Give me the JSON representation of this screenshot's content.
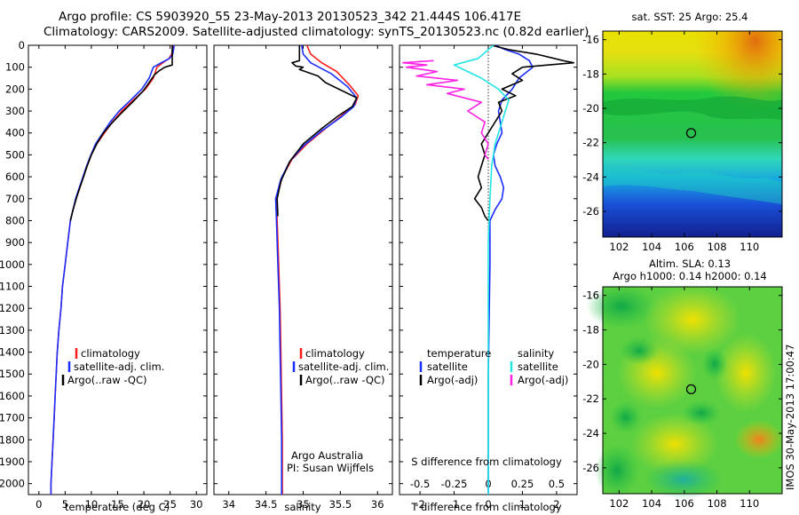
{
  "title_line1": "Argo profile: CS 5903920_55 23-May-2013 20130523_342 21.444S 106.417E",
  "title_line2": "Climatology: CARS2009. Satellite-adjusted climatology: synTS_20130523.nc (0.82d earlier)",
  "footer_vertical": "IMOS 30-May-2013 17:00:47",
  "colors": {
    "climatology": "#ff1a1a",
    "satellite": "#1a2eff",
    "argo": "#000000",
    "sal_satellite": "#22e5e5",
    "sal_argo": "#ff22e5"
  },
  "chart_data": [
    {
      "id": "temperature",
      "type": "line",
      "xlabel": "temperature (deg C)",
      "xlim": [
        -2,
        32
      ],
      "ylim": [
        2050,
        0
      ],
      "xticks": [
        0,
        5,
        10,
        15,
        20,
        25,
        30
      ],
      "yticks": [
        0,
        100,
        200,
        300,
        400,
        500,
        600,
        700,
        800,
        900,
        1000,
        1100,
        1200,
        1300,
        1400,
        1500,
        1600,
        1700,
        1800,
        1900,
        2000
      ],
      "legend": [
        "climatology",
        "satellite-adj. clim.",
        "Argo(..raw -QC)"
      ],
      "series": [
        {
          "name": "climatology",
          "color": "climatology",
          "points": [
            [
              25.6,
              0
            ],
            [
              25.3,
              40
            ],
            [
              24.8,
              60
            ],
            [
              23.6,
              80
            ],
            [
              22.5,
              100
            ],
            [
              21.8,
              150
            ],
            [
              20.3,
              200
            ],
            [
              18.0,
              250
            ],
            [
              15.8,
              300
            ],
            [
              14.0,
              350
            ],
            [
              12.5,
              400
            ],
            [
              11.0,
              450
            ],
            [
              10.0,
              500
            ],
            [
              9.2,
              550
            ],
            [
              8.5,
              600
            ],
            [
              7.8,
              650
            ],
            [
              7.1,
              700
            ],
            [
              6.5,
              750
            ],
            [
              6.0,
              800
            ],
            [
              5.5,
              900
            ],
            [
              5.0,
              1000
            ],
            [
              4.5,
              1100
            ],
            [
              4.2,
              1200
            ],
            [
              3.8,
              1300
            ],
            [
              3.5,
              1400
            ],
            [
              3.3,
              1500
            ],
            [
              3.1,
              1600
            ],
            [
              2.9,
              1700
            ],
            [
              2.7,
              1800
            ],
            [
              2.5,
              1900
            ],
            [
              2.3,
              2000
            ],
            [
              2.3,
              2050
            ]
          ]
        },
        {
          "name": "satellite-adj. clim.",
          "color": "satellite",
          "points": [
            [
              25.8,
              0
            ],
            [
              25.5,
              40
            ],
            [
              24.9,
              60
            ],
            [
              23.3,
              80
            ],
            [
              21.8,
              100
            ],
            [
              21.0,
              150
            ],
            [
              19.6,
              200
            ],
            [
              17.5,
              250
            ],
            [
              15.3,
              300
            ],
            [
              13.6,
              350
            ],
            [
              12.2,
              400
            ],
            [
              10.8,
              450
            ],
            [
              9.9,
              500
            ],
            [
              9.1,
              550
            ],
            [
              8.4,
              600
            ],
            [
              7.7,
              650
            ],
            [
              7.0,
              700
            ],
            [
              6.5,
              750
            ],
            [
              6.0,
              800
            ],
            [
              5.5,
              900
            ],
            [
              5.0,
              1000
            ],
            [
              4.5,
              1100
            ],
            [
              4.2,
              1200
            ],
            [
              3.8,
              1300
            ],
            [
              3.5,
              1400
            ],
            [
              3.3,
              1500
            ],
            [
              3.1,
              1600
            ],
            [
              2.9,
              1700
            ],
            [
              2.7,
              1800
            ],
            [
              2.5,
              1900
            ],
            [
              2.3,
              2000
            ],
            [
              2.3,
              2050
            ]
          ]
        },
        {
          "name": "Argo(..raw -QC)",
          "color": "argo",
          "points": [
            [
              25.4,
              0
            ],
            [
              25.4,
              90
            ],
            [
              24.0,
              100
            ],
            [
              23.0,
              115
            ],
            [
              22.0,
              135
            ],
            [
              21.0,
              170
            ],
            [
              19.8,
              210
            ],
            [
              17.8,
              260
            ],
            [
              15.7,
              310
            ],
            [
              13.9,
              355
            ],
            [
              12.3,
              400
            ],
            [
              11.0,
              450
            ],
            [
              10.0,
              500
            ],
            [
              9.2,
              550
            ],
            [
              8.5,
              600
            ],
            [
              7.8,
              650
            ],
            [
              7.1,
              700
            ],
            [
              6.5,
              750
            ],
            [
              6.0,
              800
            ]
          ]
        }
      ]
    },
    {
      "id": "salinity",
      "type": "line",
      "xlabel": "salinity",
      "xlim": [
        33.8,
        36.2
      ],
      "ylim": [
        2050,
        0
      ],
      "xticks": [
        34,
        34.5,
        35,
        35.5,
        36
      ],
      "legend": [
        "climatology",
        "satellite-adj. clim.",
        "Argo(..raw -QC)"
      ],
      "annotation_line1": "Argo Australia",
      "annotation_line2": "PI: Susan Wijffels",
      "series": [
        {
          "name": "climatology",
          "color": "climatology",
          "points": [
            [
              35.05,
              0
            ],
            [
              35.1,
              40
            ],
            [
              35.25,
              80
            ],
            [
              35.45,
              120
            ],
            [
              35.62,
              180
            ],
            [
              35.74,
              230
            ],
            [
              35.7,
              270
            ],
            [
              35.52,
              320
            ],
            [
              35.3,
              380
            ],
            [
              35.05,
              450
            ],
            [
              34.85,
              520
            ],
            [
              34.72,
              600
            ],
            [
              34.64,
              700
            ],
            [
              34.65,
              800
            ],
            [
              34.67,
              1000
            ],
            [
              34.69,
              1200
            ],
            [
              34.7,
              1400
            ],
            [
              34.71,
              1600
            ],
            [
              34.72,
              1800
            ],
            [
              34.72,
              2000
            ],
            [
              34.72,
              2050
            ]
          ]
        },
        {
          "name": "satellite-adj. clim.",
          "color": "satellite",
          "points": [
            [
              34.98,
              0
            ],
            [
              35.0,
              40
            ],
            [
              35.1,
              80
            ],
            [
              35.38,
              130
            ],
            [
              35.6,
              190
            ],
            [
              35.72,
              240
            ],
            [
              35.68,
              280
            ],
            [
              35.5,
              330
            ],
            [
              35.25,
              390
            ],
            [
              35.0,
              460
            ],
            [
              34.82,
              530
            ],
            [
              34.7,
              610
            ],
            [
              34.63,
              700
            ],
            [
              34.64,
              800
            ],
            [
              34.66,
              1000
            ],
            [
              34.68,
              1200
            ],
            [
              34.69,
              1400
            ],
            [
              34.7,
              1600
            ],
            [
              34.71,
              1800
            ],
            [
              34.71,
              2000
            ],
            [
              34.71,
              2050
            ]
          ]
        },
        {
          "name": "Argo(..raw -QC)",
          "color": "argo",
          "points": [
            [
              34.95,
              0
            ],
            [
              34.95,
              70
            ],
            [
              34.85,
              80
            ],
            [
              34.9,
              95
            ],
            [
              35.0,
              100
            ],
            [
              34.95,
              110
            ],
            [
              35.2,
              140
            ],
            [
              35.3,
              170
            ],
            [
              35.48,
              200
            ],
            [
              35.72,
              240
            ],
            [
              35.66,
              280
            ],
            [
              35.48,
              320
            ],
            [
              35.25,
              380
            ],
            [
              35.0,
              450
            ],
            [
              34.82,
              530
            ],
            [
              34.7,
              620
            ],
            [
              34.65,
              700
            ],
            [
              34.66,
              780
            ]
          ]
        }
      ]
    },
    {
      "id": "difference",
      "type": "line",
      "xlabel": "T difference from climatology",
      "xlabel_top": "S difference from climatology",
      "xlim": [
        -2.6,
        2.6
      ],
      "ylim": [
        2050,
        0
      ],
      "xticks": [
        -2,
        -1,
        0,
        1,
        2
      ],
      "xticks_top": [
        -0.5,
        -0.25,
        0,
        0.25,
        0.5
      ],
      "legend_temperature_title": "temperature",
      "legend_salinity_title": "salinity",
      "legend_temperature": [
        "satellite",
        "Argo(-adj)"
      ],
      "legend_salinity": [
        "satellite",
        "Argo(-adj)"
      ],
      "series": [
        {
          "name": "T satellite",
          "color": "satellite",
          "points": [
            [
              0.2,
              0
            ],
            [
              0.5,
              20
            ],
            [
              0.9,
              40
            ],
            [
              1.2,
              70
            ],
            [
              1.3,
              100
            ],
            [
              0.9,
              150
            ],
            [
              0.7,
              200
            ],
            [
              0.4,
              250
            ],
            [
              0.3,
              300
            ],
            [
              0.35,
              350
            ],
            [
              0.4,
              400
            ],
            [
              0.25,
              450
            ],
            [
              0.15,
              500
            ],
            [
              0.2,
              550
            ],
            [
              0.35,
              600
            ],
            [
              0.45,
              650
            ],
            [
              0.4,
              700
            ],
            [
              0.2,
              750
            ],
            [
              0.05,
              800
            ],
            [
              0.05,
              1000
            ],
            [
              0.0,
              1500
            ],
            [
              0.0,
              2050
            ]
          ]
        },
        {
          "name": "T Argo",
          "color": "argo",
          "points": [
            [
              0.1,
              0
            ],
            [
              0.6,
              20
            ],
            [
              1.4,
              40
            ],
            [
              2.2,
              70
            ],
            [
              2.5,
              80
            ],
            [
              1.0,
              100
            ],
            [
              0.7,
              130
            ],
            [
              1.0,
              160
            ],
            [
              0.4,
              200
            ],
            [
              0.8,
              230
            ],
            [
              0.3,
              260
            ],
            [
              0.4,
              300
            ],
            [
              0.2,
              350
            ],
            [
              0.0,
              400
            ],
            [
              -0.2,
              450
            ],
            [
              -0.1,
              500
            ],
            [
              -0.2,
              550
            ],
            [
              -0.3,
              600
            ],
            [
              -0.2,
              650
            ],
            [
              -0.4,
              700
            ],
            [
              -0.2,
              740
            ],
            [
              -0.1,
              780
            ],
            [
              0.0,
              800
            ]
          ]
        },
        {
          "name": "S satellite",
          "color": "sal_satellite",
          "points": [
            [
              0.15,
              0
            ],
            [
              -0.3,
              60
            ],
            [
              -1.0,
              90
            ],
            [
              -0.6,
              120
            ],
            [
              -0.2,
              150
            ],
            [
              0.3,
              200
            ],
            [
              0.6,
              250
            ],
            [
              0.5,
              300
            ],
            [
              0.4,
              350
            ],
            [
              0.2,
              450
            ],
            [
              0.1,
              550
            ],
            [
              0.05,
              700
            ],
            [
              0.0,
              900
            ],
            [
              0.0,
              2050
            ]
          ]
        },
        {
          "name": "S Argo",
          "color": "sal_argo",
          "points": [
            [
              -1.6,
              70
            ],
            [
              -2.5,
              80
            ],
            [
              -1.8,
              90
            ],
            [
              -2.4,
              100
            ],
            [
              -1.5,
              120
            ],
            [
              -2.1,
              140
            ],
            [
              -0.9,
              160
            ],
            [
              -1.8,
              180
            ],
            [
              -0.7,
              200
            ],
            [
              -1.2,
              220
            ],
            [
              -0.2,
              260
            ],
            [
              -0.6,
              300
            ],
            [
              -0.1,
              350
            ],
            [
              -0.2,
              400
            ],
            [
              0.0,
              450
            ],
            [
              -0.1,
              500
            ],
            [
              0.0,
              520
            ]
          ]
        }
      ]
    },
    {
      "id": "map-sst",
      "type": "heatmap",
      "title": "sat. SST: 25 Argo: 25.4",
      "xlim": [
        101,
        112
      ],
      "ylim": [
        -27.5,
        -15.5
      ],
      "xticks": [
        102,
        104,
        106,
        108,
        110
      ],
      "yticks": [
        -16,
        -18,
        -20,
        -22,
        -24,
        -26
      ],
      "marker": [
        106.417,
        -21.444
      ]
    },
    {
      "id": "map-sla",
      "type": "heatmap",
      "title_line1": "Altim. SLA: 0.13",
      "title_line2": "Argo h1000: 0.14 h2000: 0.14",
      "xlim": [
        101,
        112
      ],
      "ylim": [
        -27.5,
        -15.5
      ],
      "xticks": [
        102,
        104,
        106,
        108,
        110
      ],
      "yticks": [
        -16,
        -18,
        -20,
        -22,
        -24,
        -26
      ],
      "marker": [
        106.417,
        -21.444
      ]
    }
  ]
}
